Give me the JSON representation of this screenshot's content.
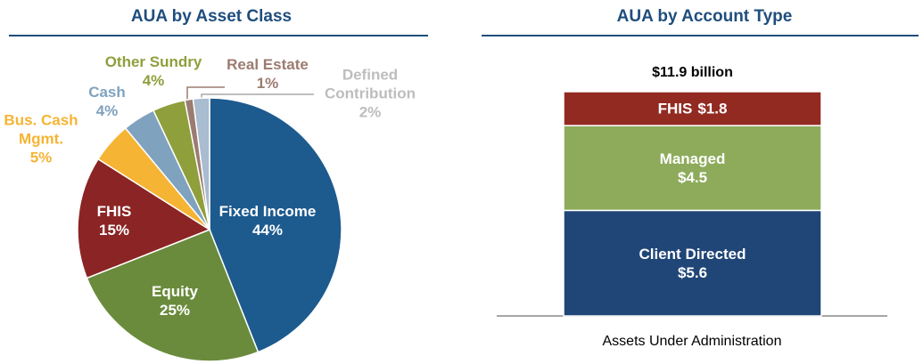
{
  "chart_data": [
    {
      "type": "pie",
      "title": "AUA by Asset Class",
      "categories": [
        "Fixed Income",
        "Equity",
        "FHIS",
        "Bus. Cash Mgmt.",
        "Cash",
        "Other Sundry",
        "Real Estate",
        "Defined Contribution"
      ],
      "values": [
        44,
        25,
        15,
        5,
        4,
        4,
        1,
        2
      ],
      "value_labels": [
        "44%",
        "25%",
        "15%",
        "5%",
        "4%",
        "4%",
        "1%",
        "2%"
      ],
      "colors": [
        "#1d5a8e",
        "#6a8b3c",
        "#8b2424",
        "#f6b434",
        "#7fa2bf",
        "#8e9f3c",
        "#9c7b70",
        "#a9bcd0"
      ]
    },
    {
      "type": "stacked_bar",
      "title": "AUA by Account Type",
      "total_label": "$11.9 billion",
      "categories": [
        "Assets Under Administration"
      ],
      "series": [
        {
          "name": "Client Directed",
          "color": "#1f4677",
          "values": [
            5.6
          ],
          "value_labels": [
            "$5.6"
          ]
        },
        {
          "name": "Managed",
          "color": "#8dab5b",
          "values": [
            4.5
          ],
          "value_labels": [
            "$4.5"
          ]
        },
        {
          "name": "FHIS",
          "color": "#922a22",
          "values": [
            1.8
          ],
          "value_labels": [
            "$1.8"
          ]
        }
      ],
      "ylim": [
        0,
        11.9
      ]
    }
  ]
}
